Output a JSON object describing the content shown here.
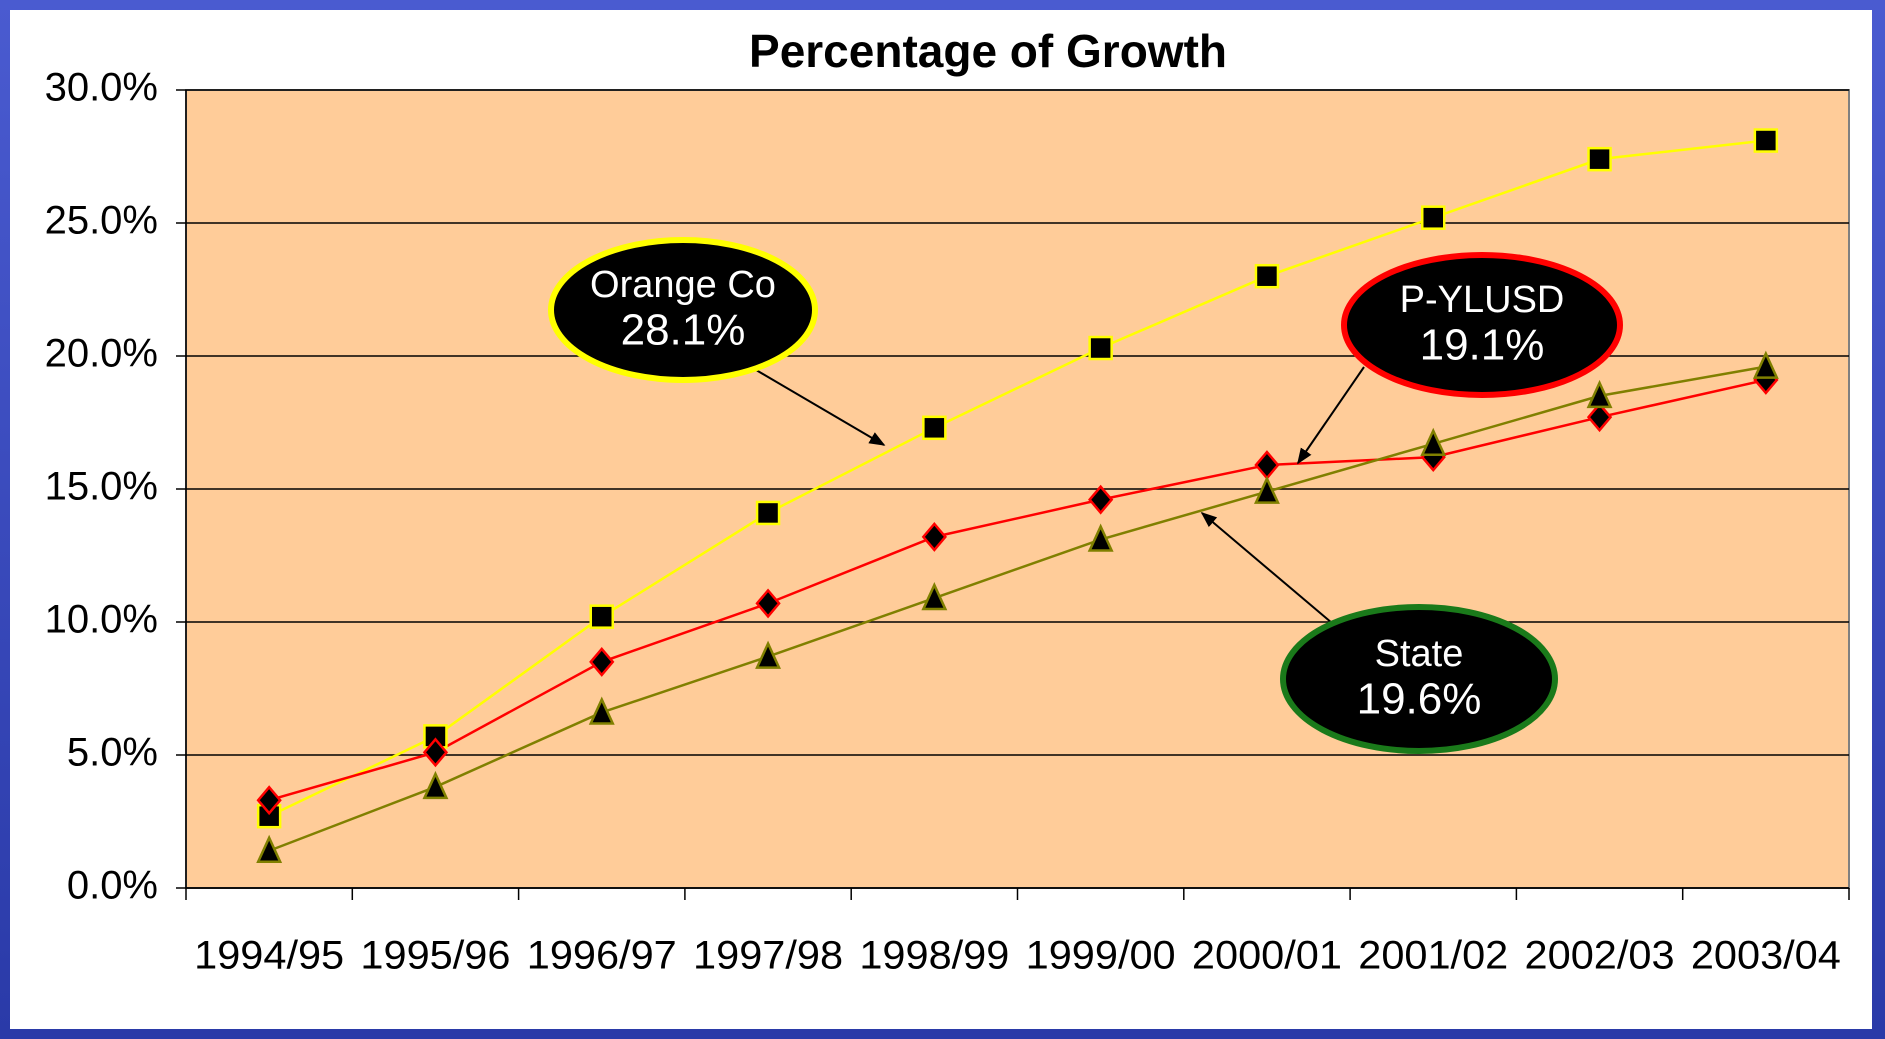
{
  "chart_data": {
    "type": "line",
    "title": "Percentage of Growth",
    "categories": [
      "1994/95",
      "1995/96",
      "1996/97",
      "1997/98",
      "1998/99",
      "1999/00",
      "2000/01",
      "2001/02",
      "2002/03",
      "2003/04"
    ],
    "series": [
      {
        "name": "Orange Co",
        "color": "#ffff00",
        "marker": "square",
        "values": [
          2.7,
          5.7,
          10.2,
          14.1,
          17.3,
          20.3,
          23.0,
          25.2,
          27.4,
          28.1
        ]
      },
      {
        "name": "P-YLUSD",
        "color": "#ff0000",
        "marker": "diamond",
        "values": [
          3.3,
          5.1,
          8.5,
          10.7,
          13.2,
          14.6,
          15.9,
          16.2,
          17.7,
          19.1
        ]
      },
      {
        "name": "State",
        "color": "#808000",
        "marker": "triangle",
        "values": [
          1.4,
          3.8,
          6.6,
          8.7,
          10.9,
          13.1,
          14.9,
          16.7,
          18.5,
          19.6
        ]
      }
    ],
    "annotations": [
      {
        "lines": [
          "Orange Co",
          "28.1%"
        ],
        "color": "#ffff00"
      },
      {
        "lines": [
          "P-YLUSD",
          "19.1%"
        ],
        "color": "#ff0000"
      },
      {
        "lines": [
          "State",
          "19.6%"
        ],
        "color": "#1a7a1a"
      }
    ],
    "ylim": [
      0,
      30
    ],
    "yticks": [
      {
        "value": 0,
        "label": "0.0%"
      },
      {
        "value": 5,
        "label": "5.0%"
      },
      {
        "value": 10,
        "label": "10.0%"
      },
      {
        "value": 15,
        "label": "15.0%"
      },
      {
        "value": 20,
        "label": "20.0%"
      },
      {
        "value": 25,
        "label": "25.0%"
      },
      {
        "value": 30,
        "label": "30.0%"
      }
    ],
    "grid": true,
    "plot_background": "#ffcc99"
  }
}
